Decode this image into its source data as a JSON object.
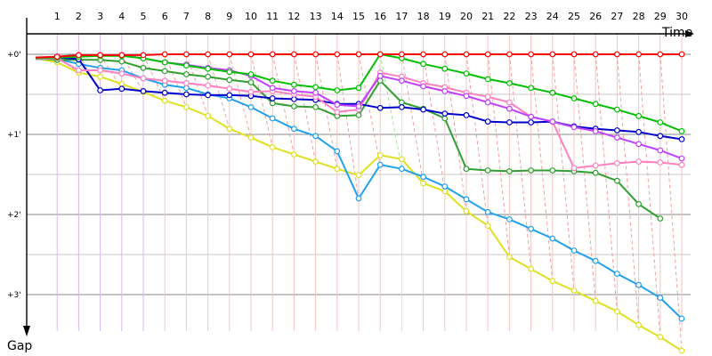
{
  "chart_data": {
    "type": "line",
    "xlabel": "Time",
    "ylabel": "Gap",
    "x_ticks": [
      "1",
      "2",
      "3",
      "4",
      "5",
      "6",
      "7",
      "8",
      "9",
      "10",
      "11",
      "12",
      "13",
      "14",
      "15",
      "16",
      "17",
      "18",
      "19",
      "20",
      "21",
      "22",
      "23",
      "24",
      "25",
      "26",
      "27",
      "28",
      "29",
      "30"
    ],
    "y_ticks": [
      {
        "value": 0,
        "label": "+0'"
      },
      {
        "value": 1,
        "label": "+1'"
      },
      {
        "value": 2,
        "label": "+2'"
      },
      {
        "value": 3,
        "label": "+3'"
      }
    ],
    "ylim": [
      0,
      3.35
    ],
    "xlim": [
      0,
      31
    ],
    "grid": true,
    "series": [
      {
        "color": "#ff0000",
        "values": [
          0.04,
          0.03,
          0.01,
          0.01,
          0.01,
          0.01,
          0.0,
          0.0,
          0.0,
          0.0,
          0.0,
          0.0,
          0.0,
          0.0,
          0.0,
          0.0,
          0.0,
          0.0,
          0.0,
          0.0,
          0.0,
          0.0,
          0.0,
          0.0,
          0.0,
          0.0,
          0.0,
          0.0,
          0.0,
          0.0,
          0.0
        ]
      },
      {
        "color": "#00c000",
        "values": [
          0.05,
          0.04,
          0.03,
          0.02,
          0.02,
          0.05,
          0.1,
          0.14,
          0.18,
          0.22,
          0.25,
          0.33,
          0.38,
          0.41,
          0.45,
          0.42,
          0.0,
          0.05,
          0.12,
          0.18,
          0.24,
          0.31,
          0.36,
          0.42,
          0.48,
          0.55,
          0.62,
          0.69,
          0.77,
          0.85,
          0.96
        ]
      },
      {
        "color": "#c040ff",
        "values": [
          0.04,
          0.03,
          0.01,
          0.01,
          0.01,
          0.05,
          0.1,
          0.13,
          0.17,
          0.2,
          0.27,
          0.42,
          0.46,
          0.48,
          0.63,
          0.65,
          0.27,
          0.33,
          0.4,
          0.46,
          0.52,
          0.6,
          0.68,
          0.78,
          0.84,
          0.91,
          0.96,
          1.04,
          1.12,
          1.2,
          1.3
        ]
      },
      {
        "color": "#ff80c0",
        "values": [
          0.06,
          0.05,
          0.2,
          0.2,
          0.24,
          0.3,
          0.33,
          0.36,
          0.39,
          0.43,
          0.47,
          0.46,
          0.5,
          0.53,
          0.72,
          0.69,
          0.23,
          0.28,
          0.36,
          0.41,
          0.48,
          0.53,
          0.6,
          0.78,
          0.84,
          1.42,
          1.39,
          1.36,
          1.34,
          1.35,
          1.38
        ]
      },
      {
        "color": "#0000cc",
        "values": [
          0.05,
          0.04,
          0.06,
          0.45,
          0.43,
          0.46,
          0.48,
          0.5,
          0.51,
          0.51,
          0.52,
          0.55,
          0.56,
          0.57,
          0.62,
          0.62,
          0.67,
          0.66,
          0.69,
          0.74,
          0.76,
          0.84,
          0.85,
          0.85,
          0.84,
          0.9,
          0.93,
          0.95,
          0.97,
          1.02,
          1.06
        ]
      },
      {
        "color": "#30a030",
        "values": [
          0.05,
          0.07,
          0.07,
          0.07,
          0.09,
          0.17,
          0.21,
          0.25,
          0.28,
          0.32,
          0.35,
          0.61,
          0.65,
          0.66,
          0.77,
          0.76,
          0.33,
          0.6,
          0.68,
          0.8,
          1.43,
          1.45,
          1.46,
          1.45,
          1.45,
          1.46,
          1.48,
          1.58,
          1.87,
          2.05
        ]
      },
      {
        "color": "#20a0f0",
        "values": [
          0.06,
          0.06,
          0.12,
          0.17,
          0.2,
          0.3,
          0.38,
          0.42,
          0.5,
          0.55,
          0.66,
          0.8,
          0.93,
          1.02,
          1.21,
          1.8,
          1.38,
          1.43,
          1.53,
          1.65,
          1.81,
          1.97,
          2.06,
          2.18,
          2.3,
          2.45,
          2.58,
          2.74,
          2.88,
          3.04,
          3.3
        ]
      },
      {
        "color": "#e0e020",
        "values": [
          0.05,
          0.1,
          0.23,
          0.28,
          0.37,
          0.47,
          0.58,
          0.66,
          0.77,
          0.93,
          1.04,
          1.16,
          1.25,
          1.34,
          1.43,
          1.51,
          1.26,
          1.31,
          1.61,
          1.71,
          1.96,
          2.14,
          2.53,
          2.68,
          2.83,
          2.95,
          3.08,
          3.21,
          3.38,
          3.53,
          3.7
        ]
      }
    ]
  }
}
